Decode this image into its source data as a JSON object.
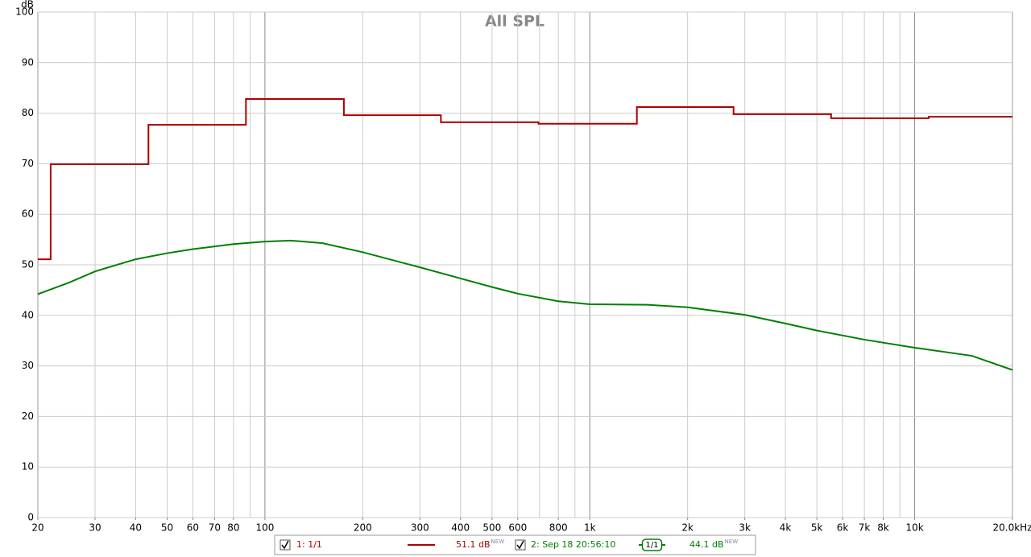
{
  "chart_data": {
    "type": "line",
    "title": "All SPL",
    "y_label": "dB",
    "x_scale": "log",
    "grid": true,
    "xlim": [
      20,
      20000
    ],
    "ylim": [
      0,
      100
    ],
    "xticks": [
      20,
      30,
      40,
      50,
      60,
      70,
      80,
      100,
      200,
      300,
      400,
      500,
      600,
      800,
      {
        "value": 1000,
        "label": "1k"
      },
      {
        "value": 2000,
        "label": "2k"
      },
      {
        "value": 3000,
        "label": "3k"
      },
      {
        "value": 4000,
        "label": "4k"
      },
      {
        "value": 5000,
        "label": "5k"
      },
      {
        "value": 6000,
        "label": "6k"
      },
      {
        "value": 7000,
        "label": "7k"
      },
      {
        "value": 8000,
        "label": "8k"
      },
      {
        "value": 10000,
        "label": "10k"
      },
      {
        "value": 20000,
        "label": "20.0kHz"
      }
    ],
    "yticks": [
      0,
      10,
      20,
      30,
      40,
      50,
      60,
      70,
      80,
      90,
      100
    ],
    "series": [
      {
        "name": "1: 1/1",
        "color": "#b00000",
        "level": "51.1 dB",
        "badge": "NEW",
        "x": [
          20,
          21.9,
          21.9,
          43.8,
          43.8,
          87.4,
          87.4,
          175,
          175,
          348,
          348,
          695,
          695,
          1396,
          1396,
          2770,
          2770,
          5530,
          5530,
          11040,
          11040,
          20000
        ],
        "values": [
          51.1,
          51.1,
          69.9,
          69.9,
          77.7,
          77.7,
          82.8,
          82.8,
          79.6,
          79.6,
          78.2,
          78.2,
          77.9,
          77.9,
          81.2,
          81.2,
          79.8,
          79.8,
          79.0,
          79.0,
          79.3,
          79.3
        ]
      },
      {
        "name": "2: Sep 18 20:56:10",
        "color": "#008000",
        "level": "44.1 dB",
        "badge": "NEW",
        "smoothing": "1/1",
        "x": [
          20,
          25,
          30,
          40,
          50,
          60,
          80,
          100,
          120,
          150,
          200,
          300,
          400,
          500,
          600,
          800,
          1000,
          1500,
          2000,
          3000,
          4000,
          5000,
          7000,
          10000,
          15000,
          20000
        ],
        "values": [
          44.2,
          46.5,
          48.7,
          51.1,
          52.3,
          53.1,
          54.1,
          54.6,
          54.8,
          54.3,
          52.5,
          49.5,
          47.3,
          45.6,
          44.3,
          42.8,
          42.2,
          42.1,
          41.6,
          40.1,
          38.4,
          37.0,
          35.2,
          33.6,
          32.0,
          29.2
        ]
      }
    ]
  }
}
